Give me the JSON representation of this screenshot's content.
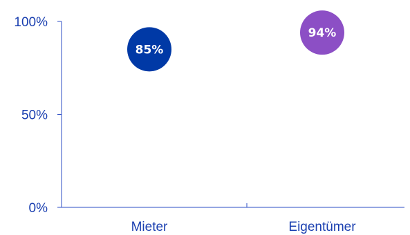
{
  "chart_data": {
    "type": "scatter",
    "categories": [
      "Mieter",
      "Eigentümer"
    ],
    "values": [
      85,
      94
    ],
    "data_labels": [
      "85%",
      "94%"
    ],
    "point_colors": [
      "#0039a6",
      "#8c4fc5"
    ],
    "y_ticks": [
      {
        "value": 0,
        "label": "0%"
      },
      {
        "value": 50,
        "label": "50%"
      },
      {
        "value": 100,
        "label": "100%"
      }
    ],
    "ylim": [
      0,
      100
    ],
    "grid": false,
    "axis_color": "#2b4cc4",
    "text_color": "#1a3fb0"
  }
}
